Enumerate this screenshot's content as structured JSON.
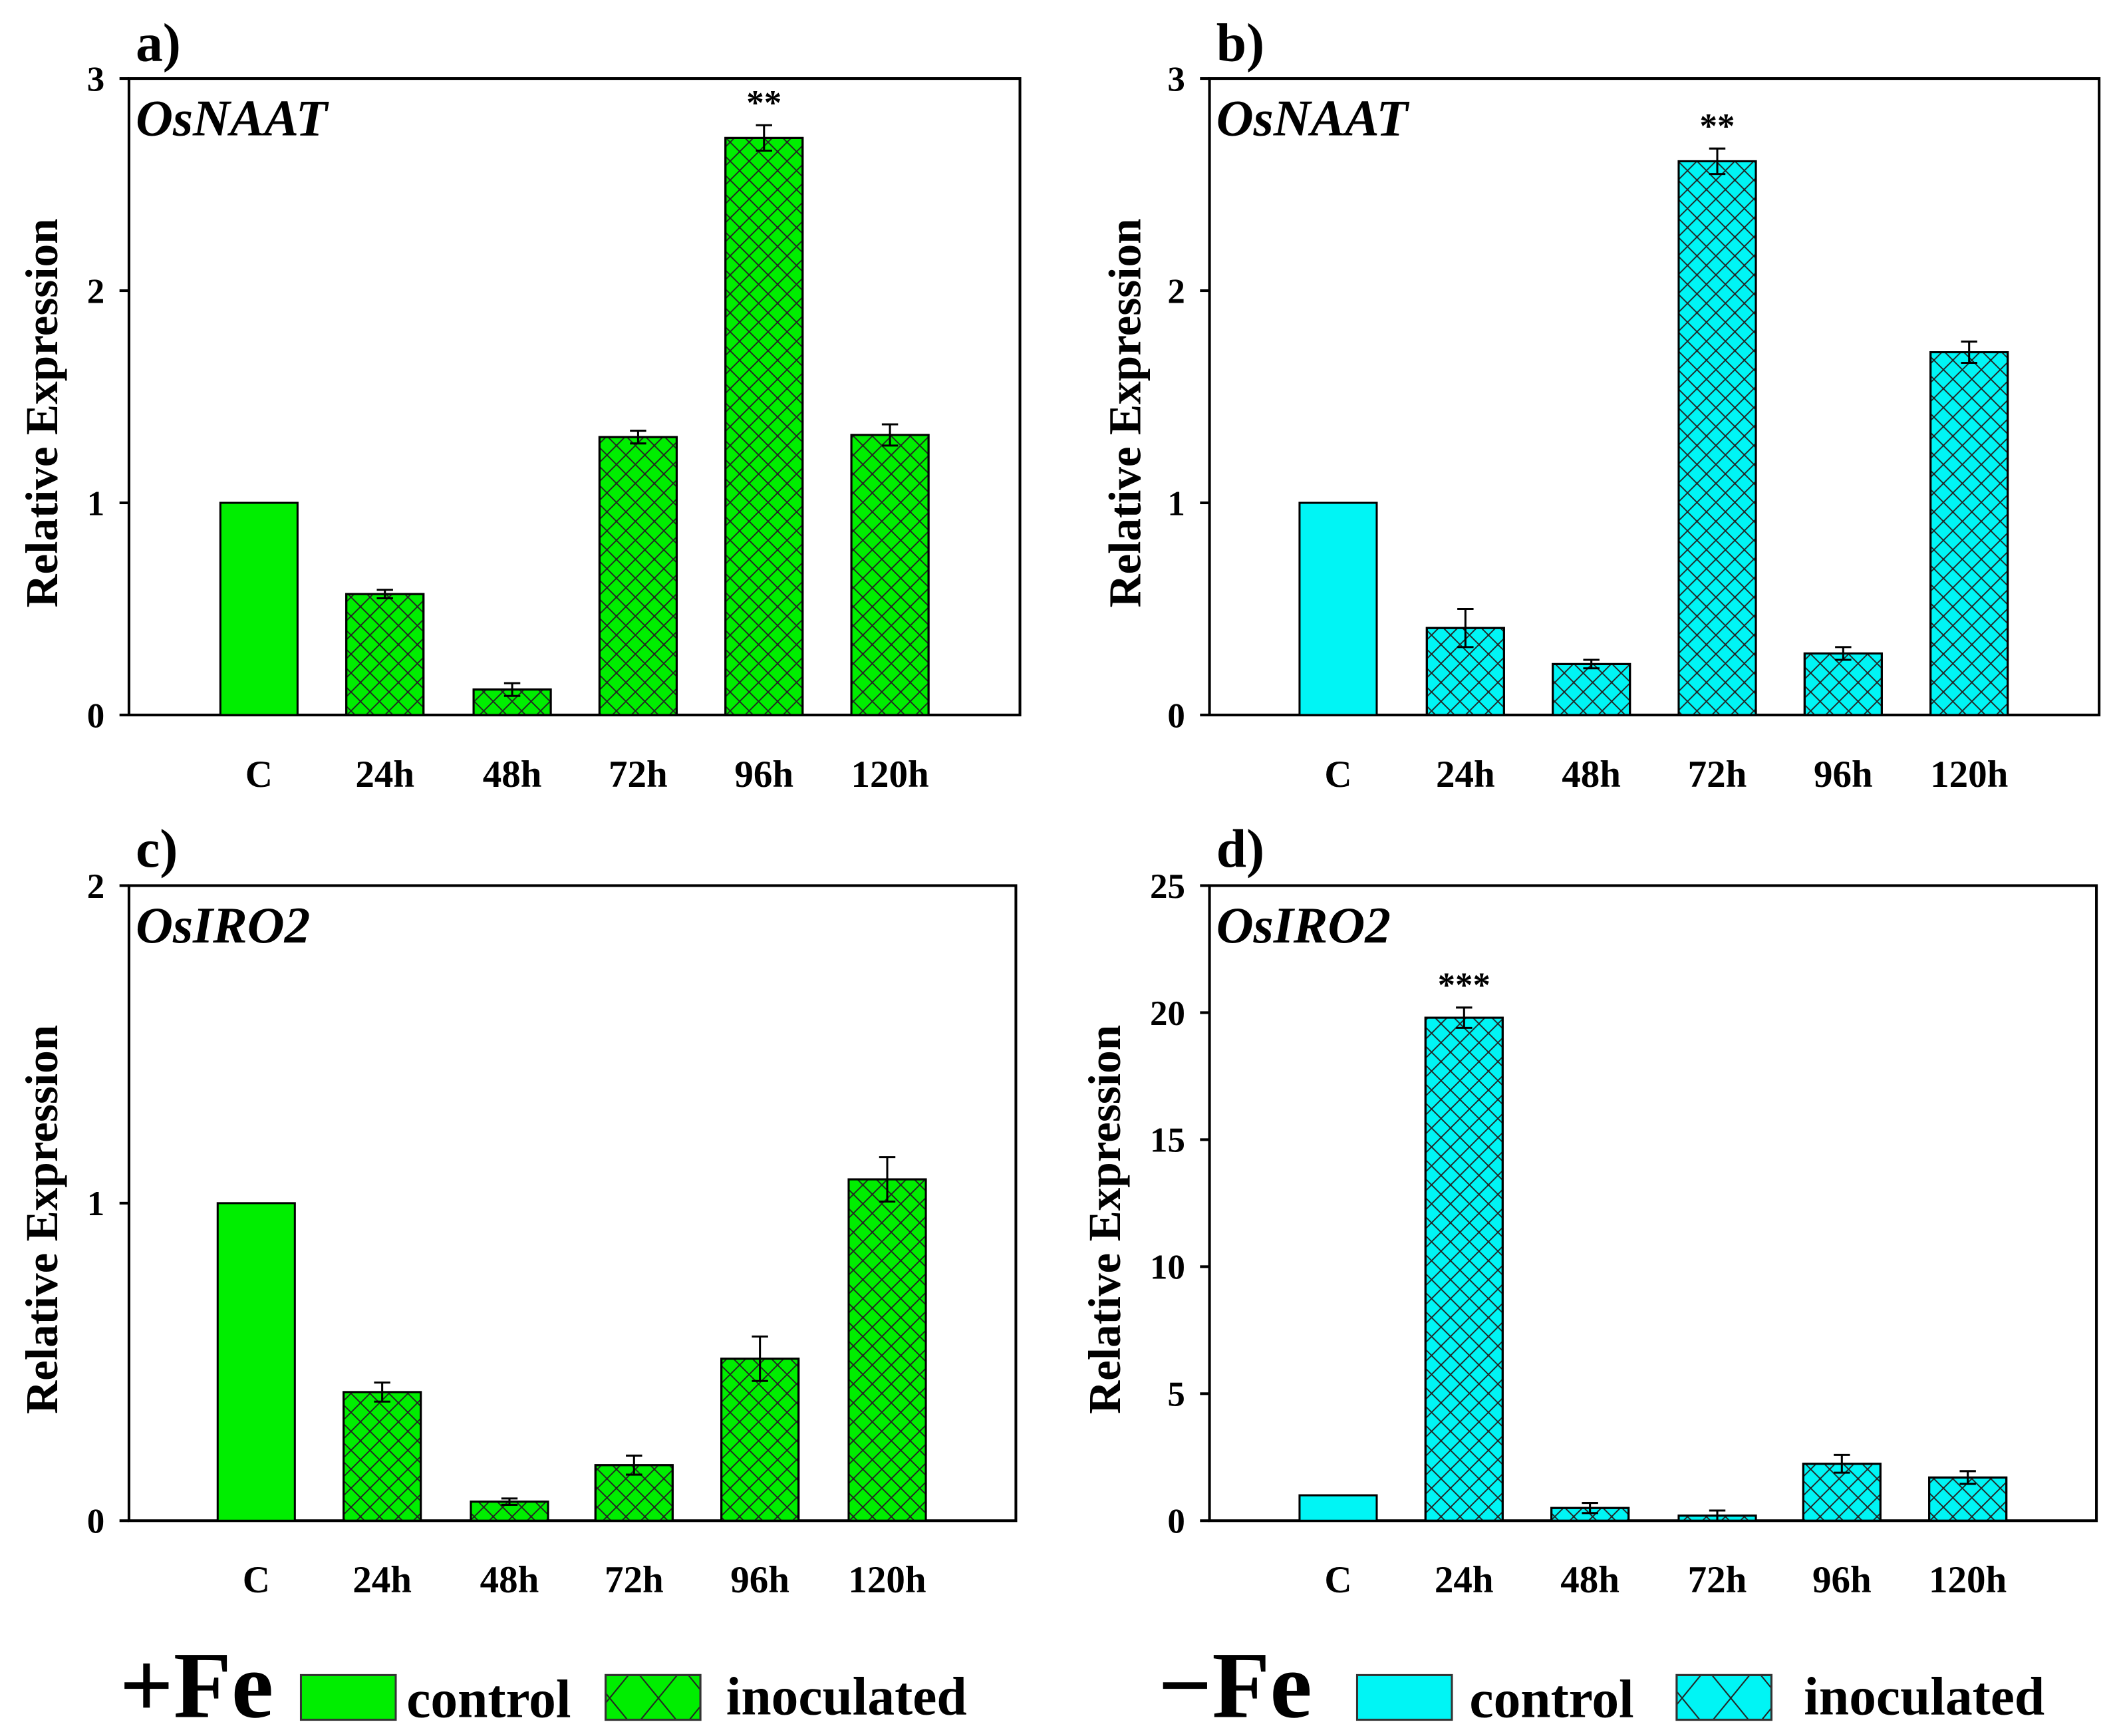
{
  "chart_data": [
    {
      "type": "bar",
      "panel": "a)",
      "title": "OsNAAT",
      "ylabel": "Relative Expression",
      "categories": [
        "C",
        "24h",
        "48h",
        "72h",
        "96h",
        "120h"
      ],
      "values": [
        1.0,
        0.57,
        0.12,
        1.31,
        2.72,
        1.32
      ],
      "errors": [
        0,
        0.02,
        0.03,
        0.03,
        0.06,
        0.05
      ],
      "significance": [
        "",
        "",
        "",
        "",
        "**",
        ""
      ],
      "ylim": [
        0,
        3
      ],
      "yticks": [
        "0",
        "1",
        "2",
        "3"
      ],
      "condition": "+Fe",
      "color": "#00ee00"
    },
    {
      "type": "bar",
      "panel": "b)",
      "title": "OsNAAT",
      "ylabel": "Relative Expression",
      "categories": [
        "C",
        "24h",
        "48h",
        "72h",
        "96h",
        "120h"
      ],
      "values": [
        1.0,
        0.41,
        0.24,
        2.61,
        0.29,
        1.71
      ],
      "errors": [
        0,
        0.09,
        0.02,
        0.06,
        0.03,
        0.05
      ],
      "significance": [
        "",
        "",
        "",
        "**",
        "",
        ""
      ],
      "ylim": [
        0,
        3
      ],
      "yticks": [
        "0",
        "1",
        "2",
        "3"
      ],
      "condition": "-Fe",
      "color": "#00f5f5"
    },
    {
      "type": "bar",
      "panel": "c)",
      "title": "OsIRO2",
      "ylabel": "Relative Expression",
      "categories": [
        "C",
        "24h",
        "48h",
        "72h",
        "96h",
        "120h"
      ],
      "values": [
        1.0,
        0.405,
        0.06,
        0.175,
        0.51,
        1.075
      ],
      "errors": [
        0,
        0.03,
        0.01,
        0.03,
        0.07,
        0.07
      ],
      "significance": [
        "",
        "",
        "",
        "",
        "",
        ""
      ],
      "ylim": [
        0,
        2
      ],
      "yticks": [
        "0",
        "1",
        "2"
      ],
      "condition": "+Fe",
      "color": "#00ee00"
    },
    {
      "type": "bar",
      "panel": "d)",
      "title": "OsIRO2",
      "ylabel": "Relative Expression",
      "categories": [
        "C",
        "24h",
        "48h",
        "72h",
        "96h",
        "120h"
      ],
      "values": [
        1.0,
        19.8,
        0.5,
        0.2,
        2.24,
        1.7
      ],
      "errors": [
        0,
        0.4,
        0.2,
        0.2,
        0.35,
        0.25
      ],
      "significance": [
        "",
        "***",
        "",
        "",
        "",
        ""
      ],
      "ylim": [
        0,
        25
      ],
      "yticks": [
        "0",
        "5",
        "10",
        "15",
        "20",
        "25"
      ],
      "condition": "-Fe",
      "color": "#00f5f5"
    }
  ],
  "legend": [
    {
      "condition": "+Fe",
      "control": "control",
      "inoculated": "inoculated",
      "color": "#00ee00"
    },
    {
      "condition": "−Fe",
      "control": "control",
      "inoculated": "inoculated",
      "color": "#00f5f5"
    }
  ]
}
